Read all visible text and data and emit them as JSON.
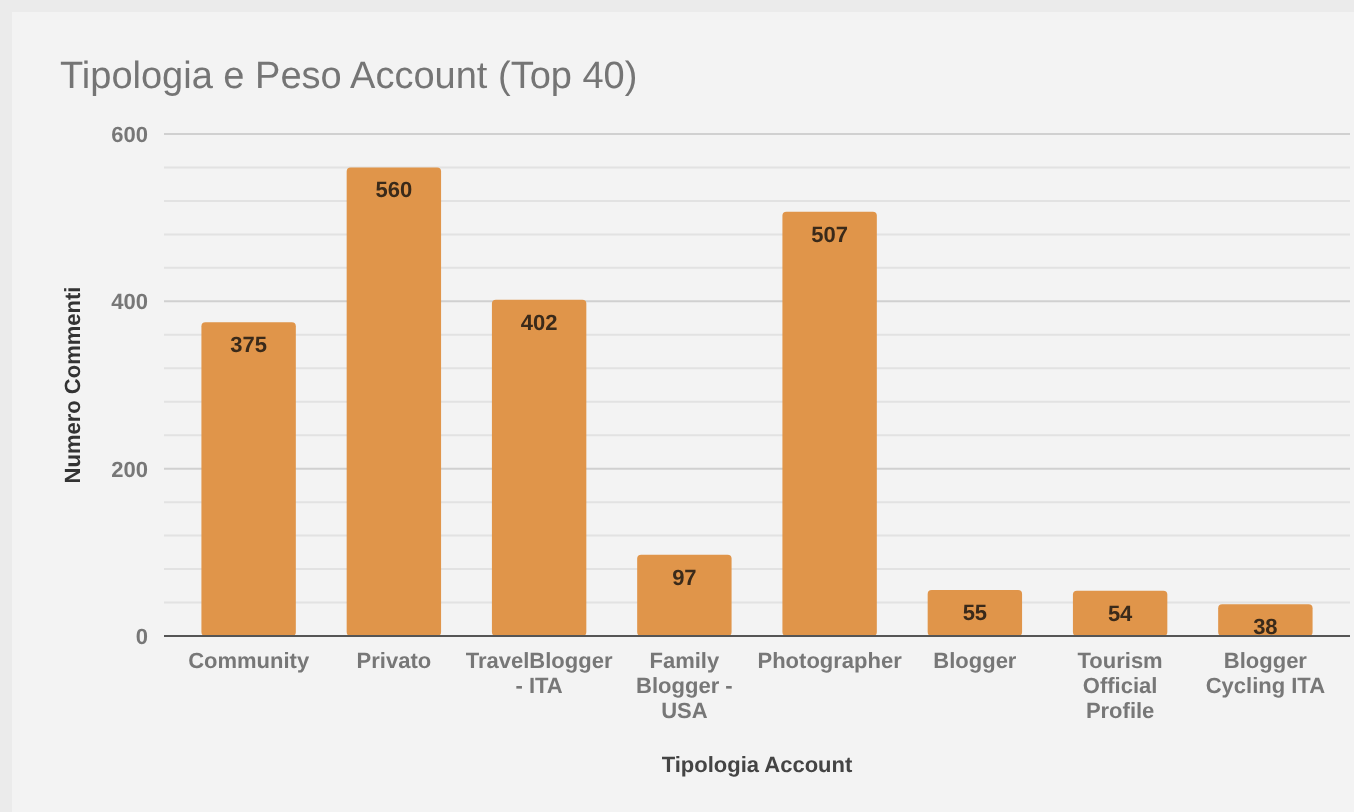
{
  "chart_data": {
    "type": "bar",
    "title": "Tipologia e Peso Account (Top 40)",
    "xlabel": "Tipologia Account",
    "ylabel": "Numero Commenti",
    "categories": [
      "Community",
      "Privato",
      "TravelBlogger - ITA",
      "Family Blogger - USA",
      "Photographer",
      "Blogger",
      "Tourism Official Profile",
      "Blogger Cycling ITA"
    ],
    "values": [
      375,
      560,
      402,
      97,
      507,
      55,
      54,
      38
    ],
    "color": "#e0954a",
    "data_labels": true,
    "ylim": [
      0,
      600
    ],
    "yticks": [
      0,
      {
        "value": 40,
        "label": null
      },
      {
        "value": 80,
        "label": null
      },
      {
        "value": 120,
        "label": null
      },
      {
        "value": 160,
        "label": null
      },
      200,
      {
        "value": 240,
        "label": null
      },
      {
        "value": 280,
        "label": null
      },
      {
        "value": 320,
        "label": null
      },
      {
        "value": 360,
        "label": null
      },
      400,
      {
        "value": 440,
        "label": null
      },
      {
        "value": 480,
        "label": null
      },
      {
        "value": 520,
        "label": null
      },
      {
        "value": 560,
        "label": null
      },
      600
    ],
    "grid": true
  }
}
